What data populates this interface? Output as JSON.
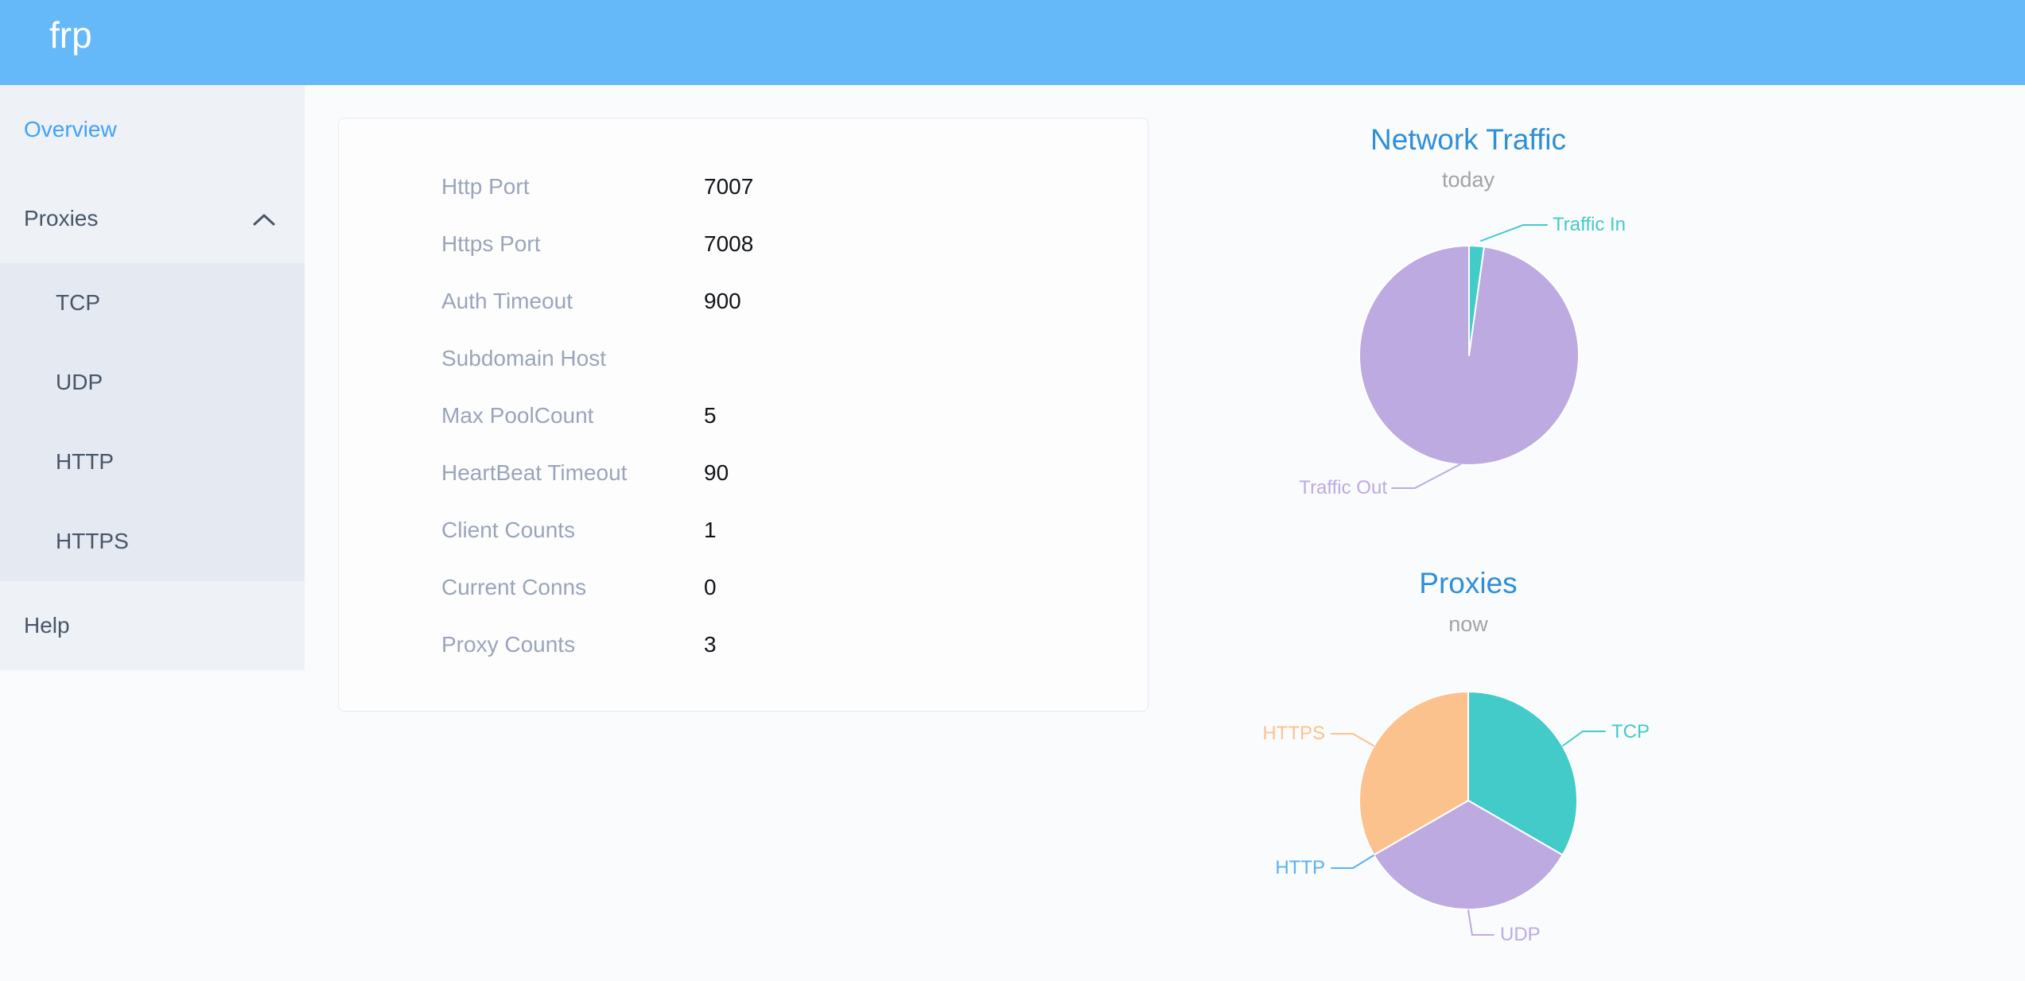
{
  "theme": {
    "header_bg": "#65b9f8",
    "sidebar_bg": "#eef1f6",
    "submenu_bg": "#e5e9f1",
    "page_bg": "#fafbfc",
    "menu_text": "#475669",
    "active_menu_text": "#42a1f8",
    "card_label_color": "#9aa5ba",
    "card_value_color": "#111418"
  },
  "header": {
    "logo": "frp"
  },
  "sidebar": {
    "overview": "Overview",
    "proxies": "Proxies",
    "submenu": [
      "TCP",
      "UDP",
      "HTTP",
      "HTTPS"
    ],
    "help": "Help"
  },
  "card": {
    "rows": [
      {
        "label": "Http Port",
        "value": "7007"
      },
      {
        "label": "Https Port",
        "value": "7008"
      },
      {
        "label": "Auth Timeout",
        "value": "900"
      },
      {
        "label": "Subdomain Host",
        "value": ""
      },
      {
        "label": "Max PoolCount",
        "value": "5"
      },
      {
        "label": "HeartBeat Timeout",
        "value": "90"
      },
      {
        "label": "Client Counts",
        "value": "1"
      },
      {
        "label": "Current Conns",
        "value": "0"
      },
      {
        "label": "Proxy Counts",
        "value": "3"
      }
    ]
  },
  "chart_data": [
    {
      "type": "pie",
      "title": "Network Traffic",
      "subtitle": "today",
      "title_color": "#2e8fd8",
      "subtitle_color": "#a3a3a3",
      "legend_position": "none",
      "label_style": "outside-leader-lines",
      "values_are": "percent",
      "slices": [
        {
          "label": "Traffic In",
          "value": 2.2,
          "color": "#43cbc9"
        },
        {
          "label": "Traffic Out",
          "value": 97.8,
          "color": "#bdaae1"
        }
      ]
    },
    {
      "type": "pie",
      "title": "Proxies",
      "subtitle": "now",
      "title_color": "#2e8fd8",
      "subtitle_color": "#a3a3a3",
      "legend_position": "none",
      "label_style": "outside-leader-lines",
      "values_are": "proxy counts",
      "slices": [
        {
          "label": "TCP",
          "value": 1,
          "color": "#43cbc9"
        },
        {
          "label": "UDP",
          "value": 1,
          "color": "#bdaae1"
        },
        {
          "label": "HTTP",
          "value": 0,
          "color": "#5ab1ef"
        },
        {
          "label": "HTTPS",
          "value": 1,
          "color": "#fbc28e"
        }
      ]
    }
  ]
}
